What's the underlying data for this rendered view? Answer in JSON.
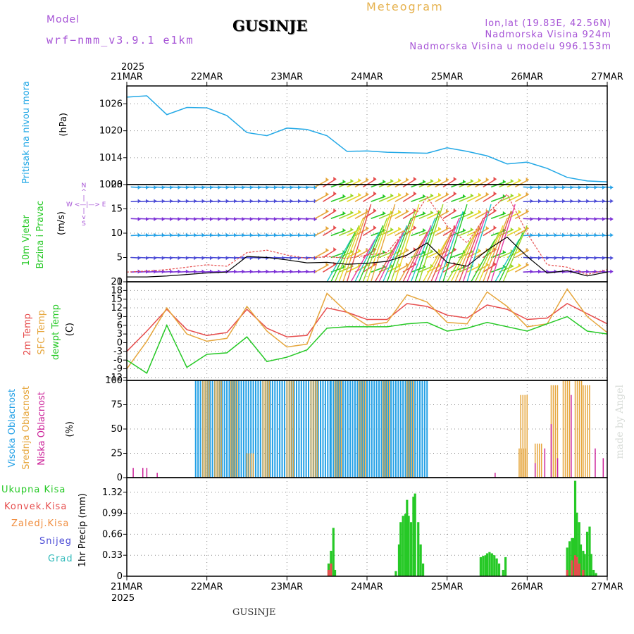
{
  "header": {
    "model_label": "Model",
    "model_name": "wrf−nmm_v3.9.1 e1km",
    "station": "GUSINJE",
    "meteogram": "Meteogram",
    "lonlat": "lon,lat (19.83E, 42.56N)",
    "elevation": "Nadmorska Visina 924m",
    "model_elevation": "Nadmorska Visina u modelu 996.153m",
    "watermark": "made by Angel"
  },
  "time_axis": {
    "year_top": "2025",
    "year_bottom": "2025",
    "labels": [
      "21MAR",
      "22MAR",
      "23MAR",
      "24MAR",
      "25MAR",
      "26MAR",
      "27MAR"
    ]
  },
  "panel_labels": {
    "pressure": [
      "Pritisak na nivou mora",
      "(hPa)"
    ],
    "wind": [
      "10m Vjetar",
      "Brzina i Pravac",
      "(m/s)"
    ],
    "compass": [
      "N",
      "^",
      "|",
      "W <—|—> E",
      "|",
      "v",
      "S"
    ],
    "temp": [
      "2m Temp",
      "SFC Temp",
      "dewpt Temp",
      "(C)"
    ],
    "cloud": [
      "Visoka Oblacnost",
      "Srednja Oblacnost",
      "Niska Oblacnost",
      "(%)"
    ],
    "precip": [
      "1hr Precip (mm)"
    ],
    "precip_legend": [
      "Ukupna Kisa",
      "Konvek.Kisa",
      "Zaledj.Kisa",
      "Snijeg",
      "Grad"
    ]
  },
  "colors": {
    "pressure": "#22a8e6",
    "temp2m": "#e64c4c",
    "sfc": "#e6a63c",
    "dew": "#26c926",
    "high_cloud": "#22a0e6",
    "mid_cloud": "#e6a63c",
    "low_cloud": "#cc2299",
    "precip_total": "#26c926",
    "precip_conv": "#e64c4c",
    "grid": "#888888"
  },
  "chart_data": [
    {
      "type": "line",
      "panel": "pressure",
      "title": "",
      "ylabel": "Pritisak na nivou mora (hPa)",
      "ylim": [
        1008,
        1030
      ],
      "yticks": [
        1008,
        1014,
        1020,
        1026
      ],
      "grid": true,
      "x": [
        0,
        0.25,
        0.5,
        0.75,
        1.0,
        1.25,
        1.5,
        1.75,
        2.0,
        2.25,
        2.5,
        2.75,
        3.0,
        3.25,
        3.5,
        3.75,
        4.0,
        4.25,
        4.5,
        4.75,
        5.0,
        5.25,
        5.5,
        5.75,
        6.0
      ],
      "series": [
        {
          "name": "Pritisak",
          "values": [
            1027.5,
            1027.8,
            1023.6,
            1025.2,
            1025.1,
            1023.4,
            1019.6,
            1018.9,
            1020.6,
            1020.3,
            1018.9,
            1015.4,
            1015.5,
            1015.2,
            1015.1,
            1015.0,
            1016.2,
            1015.4,
            1014.4,
            1012.6,
            1013.0,
            1011.6,
            1009.6,
            1008.8,
            1008.6
          ]
        }
      ]
    },
    {
      "type": "line",
      "panel": "wind",
      "title": "",
      "ylabel": "10m Vjetar Brzina i Pravac (m/s)",
      "ylim": [
        0,
        20
      ],
      "yticks": [
        0,
        5,
        10,
        15,
        20
      ],
      "grid": true,
      "x": [
        0,
        0.25,
        0.5,
        0.75,
        1.0,
        1.25,
        1.5,
        1.75,
        2.0,
        2.25,
        2.5,
        2.75,
        3.0,
        3.25,
        3.5,
        3.75,
        4.0,
        4.25,
        4.5,
        4.75,
        5.0,
        5.25,
        5.5,
        5.75,
        6.0
      ],
      "series": [
        {
          "name": "Brzina",
          "values": [
            1.0,
            1.0,
            1.2,
            1.5,
            1.8,
            2.0,
            5.2,
            5.0,
            4.5,
            3.9,
            4.0,
            3.6,
            3.8,
            4.2,
            5.5,
            8.0,
            4.0,
            3.2,
            6.5,
            9.2,
            5.2,
            1.8,
            2.3,
            1.2,
            2.0
          ]
        },
        {
          "name": "Udari",
          "values": [
            2.0,
            2.2,
            2.5,
            3.0,
            3.5,
            3.2,
            6.0,
            6.5,
            5.5,
            4.8,
            5.2,
            4.8,
            5.5,
            6.0,
            11.0,
            17.5,
            11.5,
            8.0,
            14.0,
            18.0,
            10.0,
            3.5,
            3.0,
            1.5,
            2.5
          ]
        }
      ]
    },
    {
      "type": "line",
      "panel": "temp",
      "title": "",
      "ylabel": "2m Temp / SFC Temp / dewpt Temp (C)",
      "ylim": [
        -13,
        21
      ],
      "yticks": [
        -12,
        -9,
        -6,
        -3,
        0,
        3,
        6,
        9,
        12,
        15,
        18,
        21
      ],
      "grid": true,
      "x": [
        0,
        0.25,
        0.5,
        0.75,
        1.0,
        1.25,
        1.5,
        1.75,
        2.0,
        2.25,
        2.5,
        2.75,
        3.0,
        3.25,
        3.5,
        3.75,
        4.0,
        4.25,
        4.5,
        4.75,
        5.0,
        5.25,
        5.5,
        5.75,
        6.0
      ],
      "series": [
        {
          "name": "2m Temp",
          "values": [
            -3.0,
            4.0,
            11.5,
            4.5,
            2.5,
            3.5,
            11.5,
            5.0,
            2.0,
            2.5,
            12.0,
            10.5,
            8.0,
            8.0,
            13.5,
            12.5,
            9.5,
            8.5,
            13.0,
            11.5,
            8.0,
            8.5,
            13.5,
            10.0,
            6.5
          ]
        },
        {
          "name": "SFC Temp",
          "values": [
            -9.0,
            0.5,
            12.0,
            3.0,
            0.5,
            1.5,
            12.5,
            4.0,
            -1.5,
            -0.5,
            17.0,
            10.5,
            6.0,
            7.0,
            16.5,
            14.0,
            7.0,
            6.5,
            17.5,
            12.5,
            5.5,
            6.5,
            18.5,
            9.0,
            3.5
          ]
        },
        {
          "name": "dewpt Temp",
          "values": [
            -6.0,
            -10.5,
            6.0,
            -8.5,
            -4.0,
            -3.5,
            2.0,
            -6.5,
            -5.0,
            -2.5,
            5.0,
            5.5,
            5.5,
            5.5,
            6.5,
            7.0,
            4.0,
            5.0,
            7.0,
            5.5,
            4.0,
            6.5,
            9.0,
            4.0,
            3.0
          ]
        }
      ]
    },
    {
      "type": "bar",
      "panel": "cloud",
      "title": "",
      "ylabel": "Visoka / Srednja / Niska Oblacnost (%)",
      "ylim": [
        0,
        100
      ],
      "yticks": [
        0,
        25,
        50,
        75,
        100
      ],
      "grid": true,
      "series": [
        {
          "name": "Visoka Oblacnost",
          "blocks": [
            [
              0.86,
              2.55,
              100
            ],
            [
              2.55,
              3.0,
              100
            ],
            [
              3.0,
              3.75,
              100
            ]
          ]
        },
        {
          "name": "Srednja Oblacnost",
          "spikes": [
            [
              0.95,
              100
            ],
            [
              1.1,
              100
            ],
            [
              1.3,
              100
            ],
            [
              1.5,
              25
            ],
            [
              1.7,
              100
            ],
            [
              2.0,
              100
            ],
            [
              2.3,
              100
            ],
            [
              2.6,
              100
            ],
            [
              2.9,
              100
            ],
            [
              3.2,
              100
            ],
            [
              3.5,
              100
            ],
            [
              4.9,
              30
            ],
            [
              4.92,
              85
            ],
            [
              5.1,
              35
            ],
            [
              5.3,
              95
            ],
            [
              5.45,
              100
            ],
            [
              5.6,
              100
            ],
            [
              5.7,
              95
            ]
          ]
        },
        {
          "name": "Niska Oblacnost",
          "spikes": [
            [
              0.08,
              10
            ],
            [
              0.2,
              10
            ],
            [
              0.25,
              10
            ],
            [
              0.38,
              5
            ],
            [
              4.6,
              5
            ],
            [
              5.1,
              15
            ],
            [
              5.22,
              30
            ],
            [
              5.3,
              55
            ],
            [
              5.38,
              20
            ],
            [
              5.55,
              85
            ],
            [
              5.85,
              30
            ],
            [
              5.95,
              20
            ]
          ]
        }
      ]
    },
    {
      "type": "bar",
      "panel": "precip",
      "title": "",
      "ylabel": "1hr Precip (mm)",
      "ylim": [
        0,
        1.55
      ],
      "yticks": [
        0,
        0.33,
        0.66,
        0.99,
        1.32
      ],
      "grid": true,
      "series": [
        {
          "name": "Ukupna Kisa",
          "x": [
            2.52,
            2.55,
            2.58,
            2.6,
            3.36,
            3.4,
            3.42,
            3.45,
            3.48,
            3.5,
            3.52,
            3.55,
            3.58,
            3.6,
            3.64,
            3.67,
            3.7,
            4.42,
            4.45,
            4.48,
            4.5,
            4.53,
            4.56,
            4.59,
            4.62,
            4.65,
            4.7,
            4.73,
            5.5,
            5.53,
            5.56,
            5.58,
            5.6,
            5.62,
            5.65,
            5.67,
            5.7,
            5.72,
            5.75,
            5.78,
            5.8,
            5.83,
            5.86
          ],
          "values": [
            0.2,
            0.4,
            0.76,
            0.1,
            0.08,
            0.5,
            0.85,
            0.95,
            0.98,
            1.2,
            0.95,
            0.85,
            1.25,
            1.3,
            0.85,
            0.5,
            0.2,
            0.3,
            0.32,
            0.33,
            0.36,
            0.38,
            0.36,
            0.33,
            0.28,
            0.2,
            0.1,
            0.3,
            0.45,
            0.55,
            0.6,
            0.6,
            1.5,
            1.0,
            0.85,
            0.5,
            0.4,
            0.35,
            0.7,
            0.78,
            0.35,
            0.1,
            0.05
          ]
        },
        {
          "name": "Konvek.Kisa",
          "x": [
            2.52,
            2.55,
            5.5,
            5.56,
            5.6,
            5.62,
            5.65,
            5.7
          ],
          "values": [
            0.1,
            0.2,
            0.1,
            0.25,
            0.33,
            0.3,
            0.2,
            0.1
          ]
        }
      ]
    }
  ]
}
